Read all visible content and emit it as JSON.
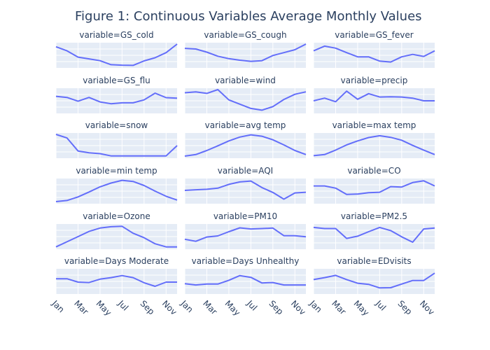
{
  "title": "Figure 1: Continuous Variables Average Monthly Values",
  "colors": {
    "line": "#636efa",
    "panel_bg": "#e5ecf6",
    "grid": "#ffffff",
    "text": "#2a3f5f"
  },
  "chart_data": {
    "type": "line",
    "facet_layout": {
      "rows": 6,
      "cols": 3
    },
    "x": [
      "Jan",
      "Feb",
      "Mar",
      "Apr",
      "May",
      "Jun",
      "Jul",
      "Aug",
      "Sep",
      "Oct",
      "Nov",
      "Dec"
    ],
    "x_tick_labels": [
      "Jan",
      "Mar",
      "May",
      "Jul",
      "Sep",
      "Nov"
    ],
    "y_axis_visible": false,
    "grid": true,
    "series": [
      {
        "name": "variable=GS_cold",
        "values": [
          0.88,
          0.7,
          0.42,
          0.34,
          0.26,
          0.08,
          0.06,
          0.05,
          0.25,
          0.39,
          0.62,
          1.0
        ]
      },
      {
        "name": "variable=GS_cough",
        "values": [
          0.81,
          0.78,
          0.64,
          0.46,
          0.35,
          0.28,
          0.23,
          0.26,
          0.49,
          0.62,
          0.75,
          1.0
        ]
      },
      {
        "name": "variable=GS_fever",
        "values": [
          0.7,
          0.91,
          0.82,
          0.62,
          0.43,
          0.43,
          0.24,
          0.2,
          0.43,
          0.54,
          0.45,
          0.7
        ]
      },
      {
        "name": "variable=GS_flu",
        "values": [
          0.7,
          0.65,
          0.48,
          0.65,
          0.45,
          0.37,
          0.41,
          0.41,
          0.54,
          0.84,
          0.64,
          0.62
        ]
      },
      {
        "name": "variable=wind",
        "values": [
          0.86,
          0.9,
          0.83,
          1.0,
          0.54,
          0.35,
          0.16,
          0.08,
          0.24,
          0.56,
          0.79,
          0.9
        ]
      },
      {
        "name": "variable=precip",
        "values": [
          0.5,
          0.62,
          0.46,
          0.93,
          0.57,
          0.82,
          0.67,
          0.68,
          0.67,
          0.62,
          0.5,
          0.5
        ]
      },
      {
        "name": "variable=snow",
        "values": [
          1.0,
          0.84,
          0.26,
          0.18,
          0.14,
          0.04,
          0.04,
          0.04,
          0.04,
          0.04,
          0.04,
          0.5
        ]
      },
      {
        "name": "variable=avg temp",
        "values": [
          0.03,
          0.1,
          0.28,
          0.49,
          0.71,
          0.88,
          0.98,
          0.92,
          0.76,
          0.53,
          0.28,
          0.1
        ]
      },
      {
        "name": "variable=max temp",
        "values": [
          0.05,
          0.1,
          0.3,
          0.53,
          0.71,
          0.86,
          0.94,
          0.87,
          0.74,
          0.51,
          0.3,
          0.1
        ]
      },
      {
        "name": "variable=min temp",
        "values": [
          0.03,
          0.08,
          0.24,
          0.46,
          0.69,
          0.86,
          0.98,
          0.93,
          0.75,
          0.5,
          0.27,
          0.1
        ]
      },
      {
        "name": "variable=AQI",
        "values": [
          0.53,
          0.56,
          0.58,
          0.63,
          0.8,
          0.91,
          0.95,
          0.66,
          0.44,
          0.14,
          0.42,
          0.45
        ]
      },
      {
        "name": "variable=CO",
        "values": [
          0.73,
          0.73,
          0.63,
          0.35,
          0.37,
          0.43,
          0.45,
          0.7,
          0.68,
          0.88,
          0.96,
          0.73
        ]
      },
      {
        "name": "variable=Ozone",
        "values": [
          0.04,
          0.27,
          0.5,
          0.73,
          0.88,
          0.94,
          0.96,
          0.65,
          0.45,
          0.18,
          0.04,
          0.04
        ]
      },
      {
        "name": "variable=PM10",
        "values": [
          0.38,
          0.29,
          0.48,
          0.53,
          0.72,
          0.89,
          0.84,
          0.86,
          0.88,
          0.54,
          0.54,
          0.49
        ]
      },
      {
        "name": "variable=PM2.5",
        "values": [
          0.91,
          0.86,
          0.86,
          0.42,
          0.52,
          0.72,
          0.91,
          0.77,
          0.49,
          0.25,
          0.84,
          0.88
        ]
      },
      {
        "name": "variable=Days Moderate",
        "values": [
          0.62,
          0.62,
          0.47,
          0.45,
          0.6,
          0.67,
          0.76,
          0.67,
          0.44,
          0.28,
          0.47,
          0.47
        ]
      },
      {
        "name": "variable=Days Unhealthy",
        "values": [
          0.4,
          0.34,
          0.38,
          0.38,
          0.55,
          0.76,
          0.68,
          0.43,
          0.45,
          0.34,
          0.34,
          0.34
        ]
      },
      {
        "name": "variable=EDvisits",
        "values": [
          0.58,
          0.67,
          0.77,
          0.58,
          0.42,
          0.37,
          0.21,
          0.22,
          0.38,
          0.54,
          0.54,
          0.87
        ]
      }
    ]
  }
}
